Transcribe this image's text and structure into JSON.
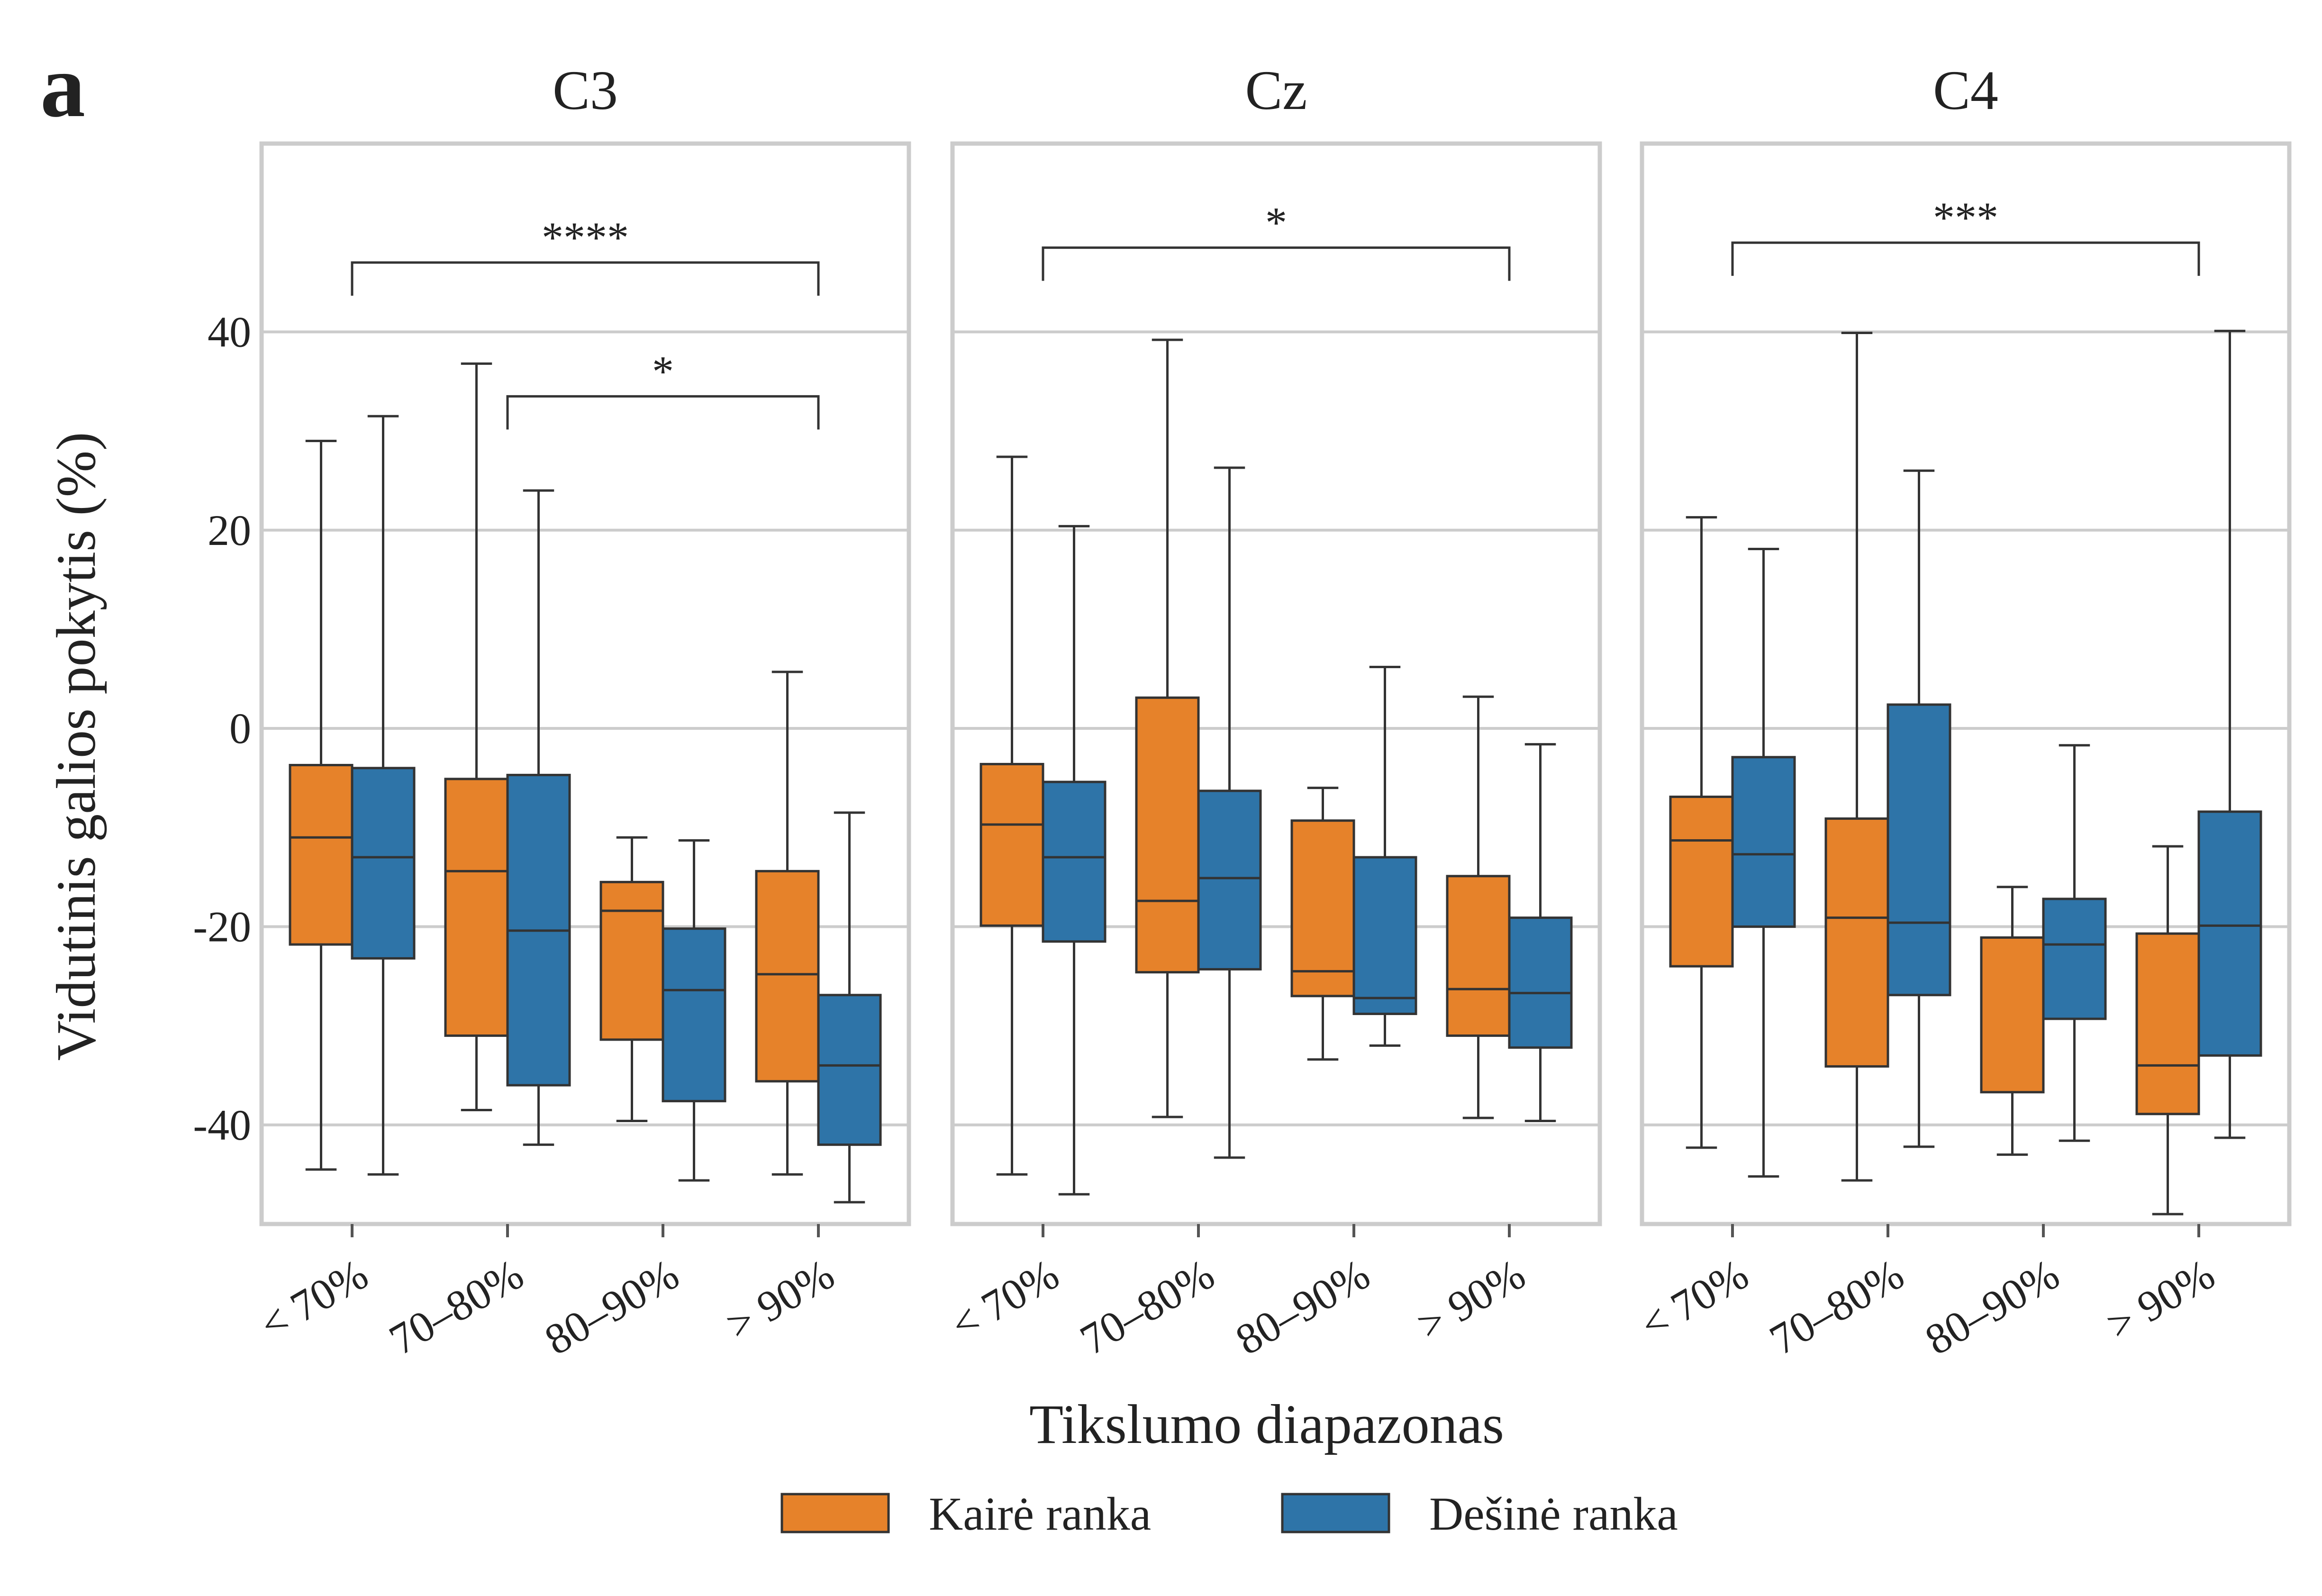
{
  "figure_letter": "a",
  "chart_data": {
    "type": "box",
    "ylabel": "Vidutinis galios pokytis (%)",
    "xlabel": "Tikslumo diapazonas",
    "ylim": [
      -50,
      59
    ],
    "yticks": [
      40,
      20,
      0,
      -20,
      -40
    ],
    "ytick_labels": [
      "40",
      "20",
      "0",
      "-20",
      "-40"
    ],
    "categories": [
      "< 70%",
      "70–80%",
      "80–90%",
      "> 90%"
    ],
    "grid": true,
    "legend_position": "bottom",
    "series": [
      {
        "name": "Kairė ranka",
        "color": "#E6822A"
      },
      {
        "name": "Dešinė ranka",
        "color": "#2E74A8"
      }
    ],
    "edge_color": "#333333",
    "panels": [
      {
        "title": "C3",
        "boxes": [
          [
            [
              -44.5,
              -21.8,
              -11,
              -3.7,
              29
            ],
            [
              -45,
              -23.2,
              -13,
              -4,
              31.5
            ]
          ],
          [
            [
              -38.5,
              -31,
              -14.4,
              -5.1,
              36.8
            ],
            [
              -42,
              -36,
              -20.4,
              -4.7,
              24
            ]
          ],
          [
            [
              -39.6,
              -31.4,
              -18.4,
              -15.5,
              -11
            ],
            [
              -45.6,
              -37.6,
              -26.4,
              -20.2,
              -11.3
            ]
          ],
          [
            [
              -45,
              -35.6,
              -24.8,
              -14.4,
              5.7
            ],
            [
              -47.8,
              -42,
              -34,
              -26.9,
              -8.5
            ]
          ]
        ],
        "annotations": [
          {
            "text": "****",
            "from": 0,
            "to": 3,
            "level": 47
          },
          {
            "text": "*",
            "from": 1,
            "to": 3,
            "level": 33.5
          }
        ]
      },
      {
        "title": "Cz",
        "boxes": [
          [
            [
              -45,
              -19.9,
              -9.7,
              -3.6,
              27.4
            ],
            [
              -47,
              -21.5,
              -13,
              -5.4,
              20.4
            ]
          ],
          [
            [
              -39.2,
              -24.6,
              -17.4,
              3.1,
              39.2
            ],
            [
              -43.3,
              -24.3,
              -15.1,
              -6.3,
              26.3
            ]
          ],
          [
            [
              -33.4,
              -27,
              -24.5,
              -9.3,
              -6
            ],
            [
              -32,
              -28.8,
              -27.2,
              -13,
              6.2
            ]
          ],
          [
            [
              -39.3,
              -31,
              -26.3,
              -14.9,
              3.2
            ],
            [
              -39.6,
              -32.2,
              -26.7,
              -19.1,
              -1.6
            ]
          ]
        ],
        "annotations": [
          {
            "text": "*",
            "from": 0,
            "to": 3,
            "level": 48.5
          }
        ]
      },
      {
        "title": "C4",
        "boxes": [
          [
            [
              -42.3,
              -24,
              -11.3,
              -6.9,
              21.3
            ],
            [
              -45.2,
              -20,
              -12.7,
              -2.9,
              18.1
            ]
          ],
          [
            [
              -45.6,
              -34.1,
              -19.1,
              -9.1,
              39.9
            ],
            [
              -42.2,
              -26.9,
              -19.6,
              2.4,
              26
            ]
          ],
          [
            [
              -43,
              -36.7,
              -21.1,
              -21.1,
              -16
            ],
            [
              -41.6,
              -29.3,
              -21.8,
              -17.2,
              -1.7
            ]
          ],
          [
            [
              -49,
              -38.9,
              -34,
              -20.7,
              -11.9
            ],
            [
              -41.3,
              -33,
              -19.9,
              -8.4,
              40.1
            ]
          ]
        ],
        "annotations": [
          {
            "text": "***",
            "from": 0,
            "to": 3,
            "level": 49
          }
        ]
      }
    ]
  }
}
